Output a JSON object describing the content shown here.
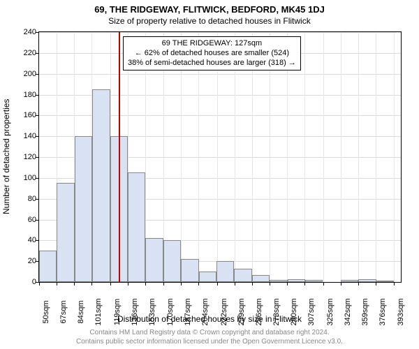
{
  "title": "69, THE RIDGEWAY, FLITWICK, BEDFORD, MK45 1DJ",
  "subtitle": "Size of property relative to detached houses in Flitwick",
  "ylabel": "Number of detached properties",
  "xlabel": "Distribution of detached houses by size in Flitwick",
  "chart": {
    "type": "histogram",
    "bar_color": "#d9e2f3",
    "bar_border_color": "#888888",
    "grid_color": "#d9d9d9",
    "axis_color": "#000000",
    "background_color": "#ffffff",
    "refline_color": "#c00000",
    "ymin": 0,
    "ymax": 240,
    "ytick_step": 20,
    "xmin": 50,
    "xmax": 400,
    "x_bin_width": 17.16,
    "x_tick_start": 50,
    "yticks": [
      0,
      20,
      40,
      60,
      80,
      100,
      120,
      140,
      160,
      180,
      200,
      220,
      240
    ],
    "xticks": [
      50,
      67,
      84,
      101,
      119,
      136,
      153,
      170,
      187,
      204,
      222,
      239,
      256,
      273,
      290,
      307,
      325,
      342,
      359,
      376,
      393
    ],
    "xtick_suffix": "sqm",
    "bars": [
      {
        "x0": 50,
        "y": 30
      },
      {
        "x0": 67.16,
        "y": 95
      },
      {
        "x0": 84.32,
        "y": 140
      },
      {
        "x0": 101.48,
        "y": 185
      },
      {
        "x0": 118.64,
        "y": 140
      },
      {
        "x0": 135.8,
        "y": 105
      },
      {
        "x0": 152.96,
        "y": 42
      },
      {
        "x0": 170.12,
        "y": 40
      },
      {
        "x0": 187.28,
        "y": 22
      },
      {
        "x0": 204.44,
        "y": 10
      },
      {
        "x0": 221.6,
        "y": 20
      },
      {
        "x0": 238.76,
        "y": 13
      },
      {
        "x0": 255.92,
        "y": 7
      },
      {
        "x0": 273.08,
        "y": 2
      },
      {
        "x0": 290.24,
        "y": 3
      },
      {
        "x0": 307.4,
        "y": 2
      },
      {
        "x0": 324.56,
        "y": 0
      },
      {
        "x0": 341.72,
        "y": 2
      },
      {
        "x0": 358.88,
        "y": 3
      },
      {
        "x0": 376.04,
        "y": 1
      }
    ],
    "reference_x": 127,
    "label_fontsize": 11,
    "axis_label_fontsize": 12,
    "title_fontsize": 13
  },
  "annotation": {
    "line1": "69 THE RIDGEWAY: 127sqm",
    "line2": "← 62% of detached houses are smaller (524)",
    "line3": "38% of semi-detached houses are larger (318) →"
  },
  "footer": {
    "line1": "Contains HM Land Registry data © Crown copyright and database right 2024.",
    "line2": "Contains public sector information licensed under the Open Government Licence v3.0."
  }
}
